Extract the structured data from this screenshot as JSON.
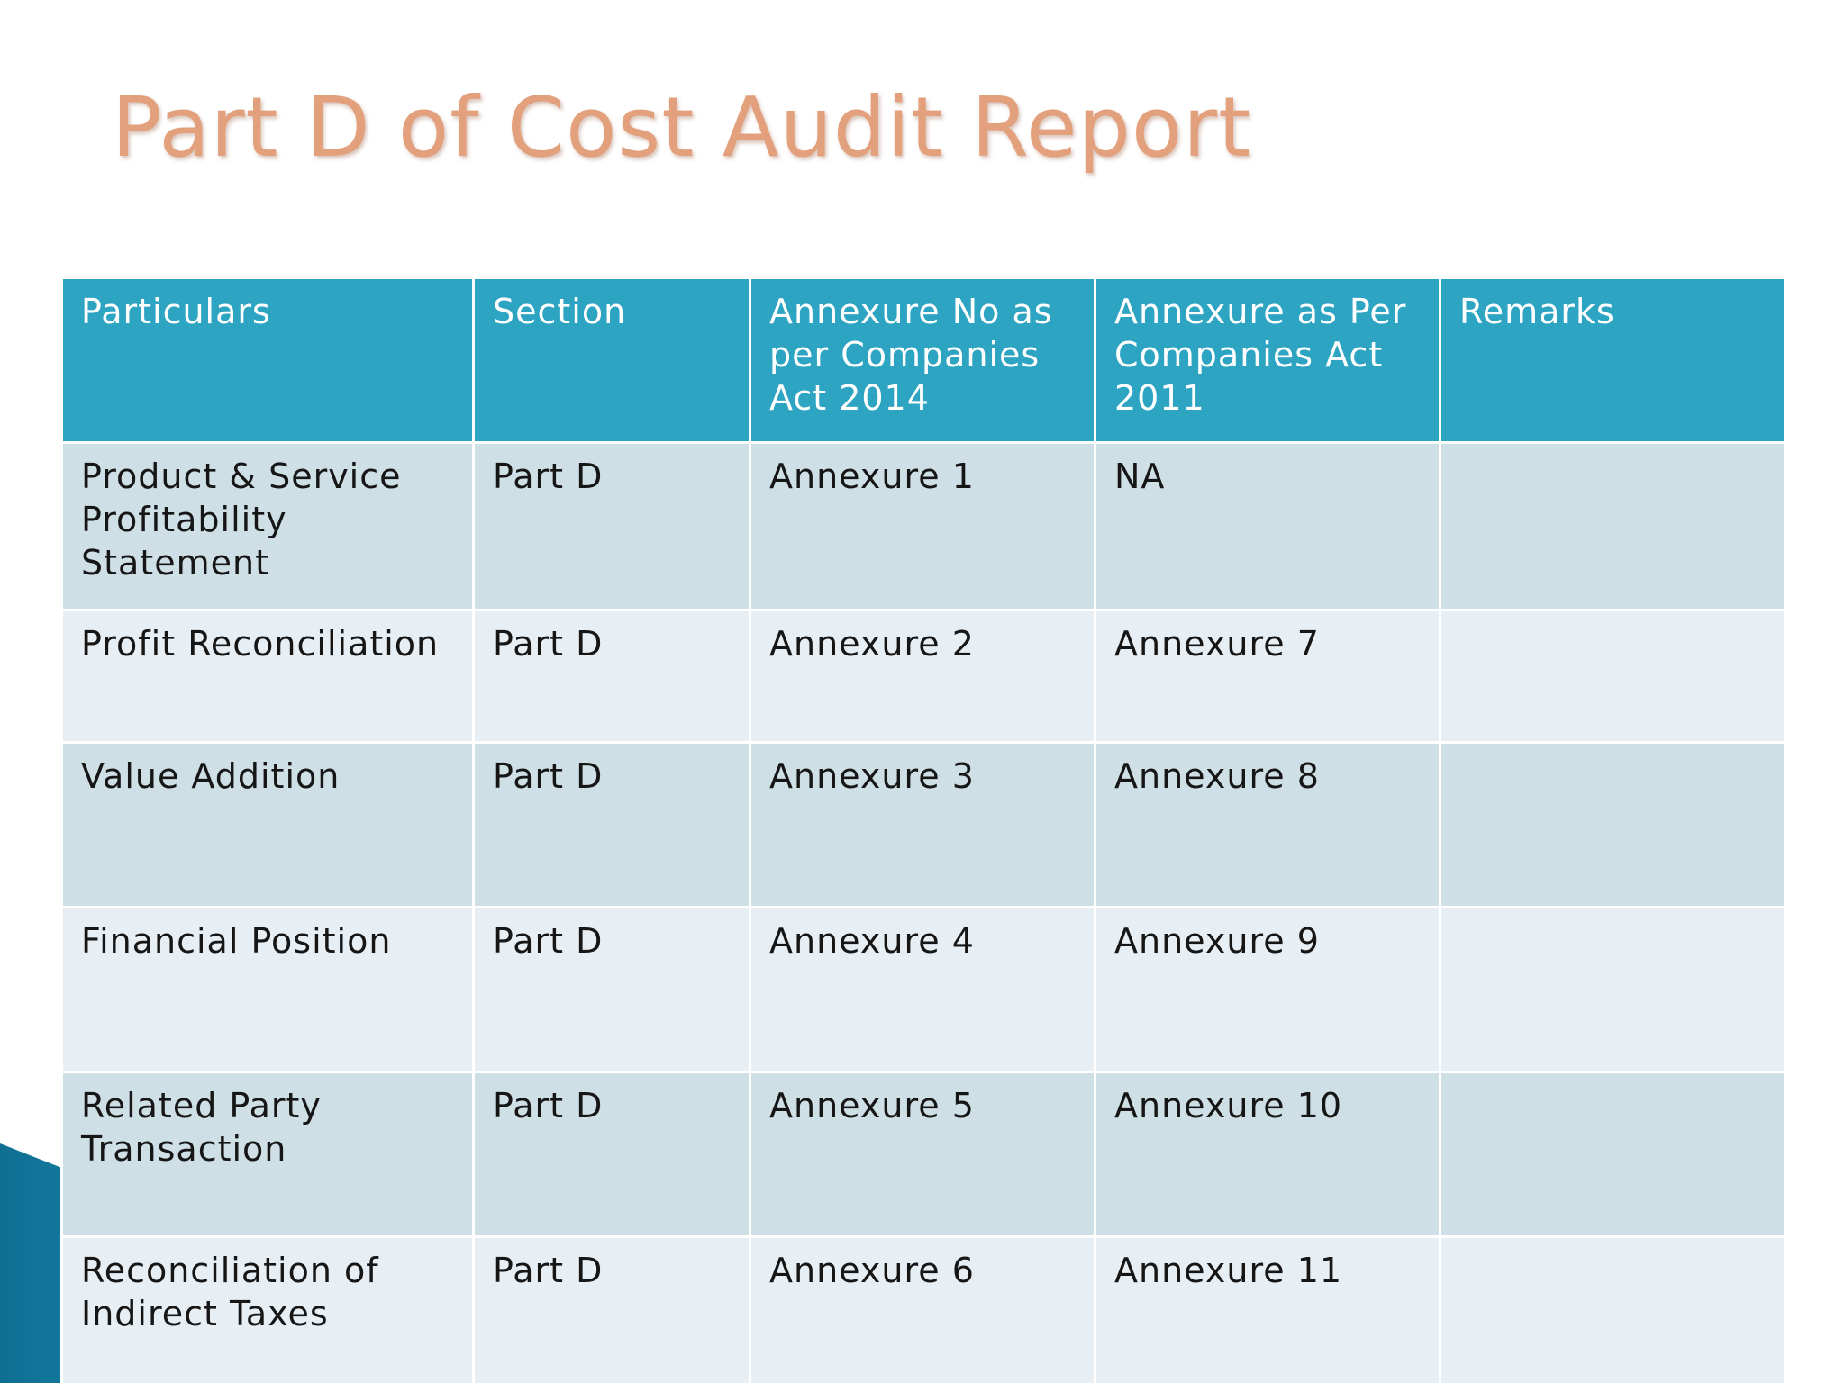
{
  "slide": {
    "title": "Part D of Cost Audit Report"
  },
  "table": {
    "headers": [
      "Particulars",
      "Section",
      "Annexure No as per Companies Act 2014",
      "Annexure as Per Companies Act 2011",
      "Remarks"
    ],
    "rows": [
      {
        "particulars": "Product & Service Profitability Statement",
        "section": "Part D",
        "annexure_2014": "Annexure 1",
        "annexure_2011": "NA",
        "remarks": ""
      },
      {
        "particulars": "Profit Reconciliation",
        "section": "Part D",
        "annexure_2014": "Annexure 2",
        "annexure_2011": "Annexure 7",
        "remarks": ""
      },
      {
        "particulars": "Value Addition",
        "section": "Part D",
        "annexure_2014": "Annexure 3",
        "annexure_2011": "Annexure 8",
        "remarks": ""
      },
      {
        "particulars": "Financial Position",
        "section": "Part D",
        "annexure_2014": "Annexure 4",
        "annexure_2011": "Annexure 9",
        "remarks": ""
      },
      {
        "particulars": "Related Party Transaction",
        "section": "Part D",
        "annexure_2014": "Annexure 5",
        "annexure_2011": "Annexure 10",
        "remarks": ""
      },
      {
        "particulars": "Reconciliation of Indirect Taxes",
        "section": "Part D",
        "annexure_2014": "Annexure 6",
        "annexure_2011": "Annexure 11",
        "remarks": ""
      }
    ]
  },
  "colors": {
    "title": "#e2a07c",
    "header_bg": "#2ca4c2",
    "row_dark": "#cfdfe6",
    "row_light": "#e8eff4",
    "accent_teal": "#1b7fa3"
  }
}
